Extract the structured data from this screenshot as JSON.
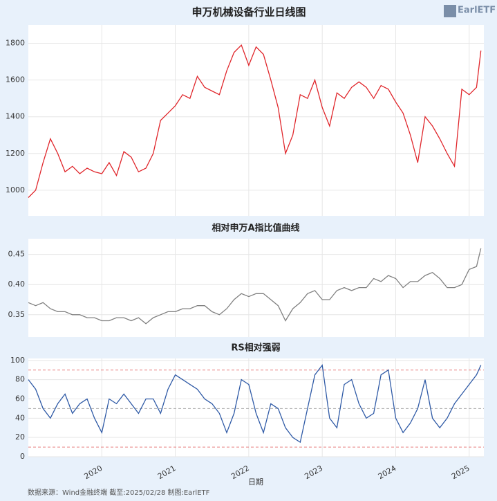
{
  "title": "申万机械设备行业日线图",
  "logo": "EarlETF",
  "footer": "数据来源：Wind金融终端 截至:2025/02/28 制图:EarlETF",
  "chart_data": [
    {
      "type": "line",
      "title": "",
      "x": [
        2019.0,
        2019.1,
        2019.2,
        2019.3,
        2019.4,
        2019.5,
        2019.6,
        2019.7,
        2019.8,
        2019.9,
        2020.0,
        2020.1,
        2020.2,
        2020.3,
        2020.4,
        2020.5,
        2020.6,
        2020.7,
        2020.8,
        2020.9,
        2021.0,
        2021.1,
        2021.2,
        2021.3,
        2021.4,
        2021.5,
        2021.6,
        2021.7,
        2021.8,
        2021.9,
        2022.0,
        2022.1,
        2022.2,
        2022.3,
        2022.4,
        2022.5,
        2022.6,
        2022.7,
        2022.8,
        2022.9,
        2023.0,
        2023.1,
        2023.2,
        2023.3,
        2023.4,
        2023.5,
        2023.6,
        2023.7,
        2023.8,
        2023.9,
        2024.0,
        2024.1,
        2024.2,
        2024.3,
        2024.4,
        2024.5,
        2024.6,
        2024.7,
        2024.8,
        2024.9,
        2025.0,
        2025.1,
        2025.16
      ],
      "series": [
        {
          "name": "申万机械设备",
          "color": "#e0262b",
          "values": [
            960,
            1000,
            1150,
            1280,
            1200,
            1100,
            1130,
            1090,
            1120,
            1100,
            1090,
            1150,
            1080,
            1210,
            1180,
            1100,
            1120,
            1200,
            1380,
            1420,
            1460,
            1520,
            1500,
            1620,
            1560,
            1540,
            1520,
            1650,
            1750,
            1790,
            1680,
            1780,
            1740,
            1600,
            1450,
            1200,
            1300,
            1520,
            1500,
            1600,
            1450,
            1350,
            1530,
            1500,
            1560,
            1590,
            1560,
            1500,
            1570,
            1550,
            1480,
            1420,
            1300,
            1150,
            1400,
            1350,
            1280,
            1200,
            1130,
            1550,
            1520,
            1560,
            1760
          ]
        }
      ],
      "xlim": [
        2019.0,
        2025.2
      ],
      "xticks": [
        2020,
        2021,
        2022,
        2023,
        2024,
        2025
      ],
      "ylim": [
        860,
        1900
      ],
      "yticks": [
        1000,
        1200,
        1400,
        1600,
        1800
      ],
      "grid": true
    },
    {
      "type": "line",
      "title": "相对申万A指比值曲线",
      "x": [
        2019.0,
        2019.1,
        2019.2,
        2019.3,
        2019.4,
        2019.5,
        2019.6,
        2019.7,
        2019.8,
        2019.9,
        2020.0,
        2020.1,
        2020.2,
        2020.3,
        2020.4,
        2020.5,
        2020.6,
        2020.7,
        2020.8,
        2020.9,
        2021.0,
        2021.1,
        2021.2,
        2021.3,
        2021.4,
        2021.5,
        2021.6,
        2021.7,
        2021.8,
        2021.9,
        2022.0,
        2022.1,
        2022.2,
        2022.3,
        2022.4,
        2022.5,
        2022.6,
        2022.7,
        2022.8,
        2022.9,
        2023.0,
        2023.1,
        2023.2,
        2023.3,
        2023.4,
        2023.5,
        2023.6,
        2023.7,
        2023.8,
        2023.9,
        2024.0,
        2024.1,
        2024.2,
        2024.3,
        2024.4,
        2024.5,
        2024.6,
        2024.7,
        2024.8,
        2024.9,
        2025.0,
        2025.1,
        2025.16
      ],
      "series": [
        {
          "name": "比值",
          "color": "#808080",
          "values": [
            0.37,
            0.365,
            0.37,
            0.36,
            0.355,
            0.355,
            0.35,
            0.35,
            0.345,
            0.345,
            0.34,
            0.34,
            0.345,
            0.345,
            0.34,
            0.345,
            0.335,
            0.345,
            0.35,
            0.355,
            0.355,
            0.36,
            0.36,
            0.365,
            0.365,
            0.355,
            0.35,
            0.36,
            0.375,
            0.385,
            0.38,
            0.385,
            0.385,
            0.375,
            0.365,
            0.34,
            0.36,
            0.37,
            0.385,
            0.39,
            0.375,
            0.375,
            0.39,
            0.395,
            0.39,
            0.395,
            0.395,
            0.41,
            0.405,
            0.415,
            0.41,
            0.395,
            0.405,
            0.405,
            0.415,
            0.42,
            0.41,
            0.395,
            0.395,
            0.4,
            0.425,
            0.43,
            0.46
          ]
        }
      ],
      "xlim": [
        2019.0,
        2025.2
      ],
      "xticks": [
        2020,
        2021,
        2022,
        2023,
        2024,
        2025
      ],
      "ylim": [
        0.313,
        0.476
      ],
      "yticks": [
        {
          "value": 0.35,
          "label": "0.35"
        },
        {
          "value": 0.4,
          "label": "0.40"
        },
        {
          "value": 0.45,
          "label": "0.45"
        }
      ],
      "grid": true
    },
    {
      "type": "line",
      "title": "RS相对强弱",
      "xlabel": "日期",
      "x": [
        2019.0,
        2019.1,
        2019.2,
        2019.3,
        2019.4,
        2019.5,
        2019.6,
        2019.7,
        2019.8,
        2019.9,
        2020.0,
        2020.1,
        2020.2,
        2020.3,
        2020.4,
        2020.5,
        2020.6,
        2020.7,
        2020.8,
        2020.9,
        2021.0,
        2021.1,
        2021.2,
        2021.3,
        2021.4,
        2021.5,
        2021.6,
        2021.7,
        2021.8,
        2021.9,
        2022.0,
        2022.1,
        2022.2,
        2022.3,
        2022.4,
        2022.5,
        2022.6,
        2022.7,
        2022.8,
        2022.9,
        2023.0,
        2023.1,
        2023.2,
        2023.3,
        2023.4,
        2023.5,
        2023.6,
        2023.7,
        2023.8,
        2023.9,
        2024.0,
        2024.1,
        2024.2,
        2024.3,
        2024.4,
        2024.5,
        2024.6,
        2024.7,
        2024.8,
        2024.9,
        2025.0,
        2025.1,
        2025.16
      ],
      "series": [
        {
          "name": "RS",
          "color": "#2f5aa6",
          "values": [
            80,
            70,
            50,
            40,
            55,
            65,
            45,
            55,
            60,
            40,
            25,
            60,
            55,
            65,
            55,
            45,
            60,
            60,
            45,
            70,
            85,
            80,
            75,
            70,
            60,
            55,
            45,
            25,
            45,
            80,
            75,
            45,
            25,
            55,
            50,
            30,
            20,
            15,
            50,
            85,
            95,
            40,
            30,
            75,
            80,
            55,
            40,
            45,
            85,
            90,
            40,
            25,
            35,
            50,
            80,
            40,
            30,
            40,
            55,
            65,
            75,
            85,
            95
          ]
        }
      ],
      "xlim": [
        2019.0,
        2025.2
      ],
      "xticks": [
        2020,
        2021,
        2022,
        2023,
        2024,
        2025
      ],
      "ylim": [
        0,
        102
      ],
      "yticks": [
        0,
        20,
        40,
        60,
        80,
        100
      ],
      "grid": true,
      "reference_lines": [
        {
          "value": 10,
          "color": "#e88080"
        },
        {
          "value": 50,
          "color": "#aaaaaa"
        },
        {
          "value": 90,
          "color": "#e88080"
        }
      ]
    }
  ]
}
